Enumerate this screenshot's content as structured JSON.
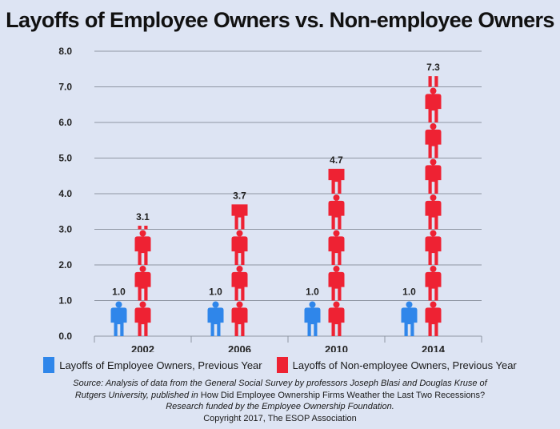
{
  "chart_data": {
    "type": "bar",
    "title": "Layoffs of Employee Owners vs. Non-employee Owners",
    "categories": [
      "2002",
      "2006",
      "2010",
      "2014"
    ],
    "series": [
      {
        "name": "Layoffs of Employee Owners, Previous Year",
        "color": "#2f86ea",
        "values": [
          1.0,
          1.0,
          1.0,
          1.0
        ],
        "labels": [
          "1.0",
          "1.0",
          "1.0",
          "1.0"
        ]
      },
      {
        "name": "Layoffs of Non-employee Owners, Previous Year",
        "color": "#ee2233",
        "values": [
          3.1,
          3.7,
          4.7,
          7.3
        ],
        "labels": [
          "3.1",
          "3.7",
          "4.7",
          "7.3"
        ]
      }
    ],
    "ylim": [
      0,
      8
    ],
    "yticks": [
      "0.0",
      "1.0",
      "2.0",
      "3.0",
      "4.0",
      "5.0",
      "6.0",
      "7.0",
      "8.0"
    ],
    "grid": true,
    "legend_position": "bottom",
    "mark": "person-icon"
  },
  "source": {
    "line1": "Source: Analysis of data from the General Social Survey by professors Joseph Blasi and Douglas Kruse of",
    "line2a": "Rutgers University, published in",
    "line2b": "How Did Employee Ownership Firms Weather the Last Two Recessions?",
    "line3": "Research funded by the Employee Ownership Foundation.",
    "copyright": "Copyright 2017, The ESOP Association"
  }
}
